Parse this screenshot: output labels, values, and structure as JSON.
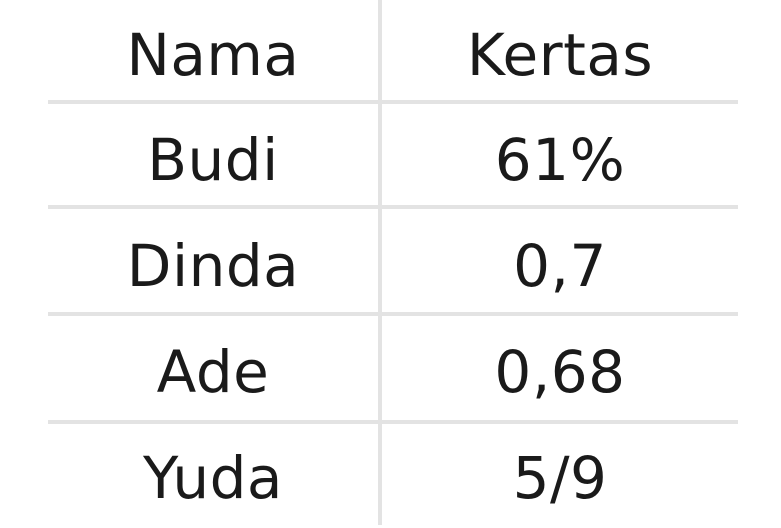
{
  "table": {
    "headers": [
      "Nama",
      "Kertas"
    ],
    "rows": [
      [
        "Budi",
        "61%"
      ],
      [
        "Dinda",
        "0,7"
      ],
      [
        "Ade",
        "0,68"
      ],
      [
        "Yuda",
        "5/9"
      ]
    ]
  }
}
